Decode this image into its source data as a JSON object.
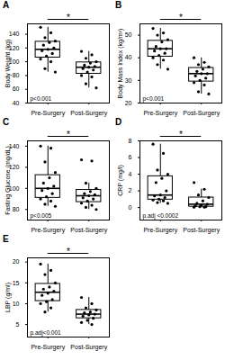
{
  "chart_data": [
    {
      "type": "box",
      "title": "A",
      "y_label": "Body Weight (kg)",
      "color": "#000000",
      "categories": [
        "Pre-Surgery",
        "Post-Surgery"
      ],
      "values": [
        [
          150,
          142,
          135,
          130,
          128,
          124,
          120,
          118,
          116,
          112,
          108,
          104,
          100,
          90,
          85
        ],
        [
          115,
          110,
          105,
          100,
          98,
          95,
          93,
          92,
          90,
          88,
          85,
          80,
          78,
          68,
          62
        ]
      ],
      "ylim": [
        40,
        155
      ],
      "yticks": [
        40,
        60,
        80,
        100,
        120,
        140
      ],
      "annotations": [
        "*",
        "p<0.001"
      ]
    },
    {
      "type": "box",
      "title": "B",
      "y_label": "Body Mass Index (kg/m²)",
      "color": "#000000",
      "categories": [
        "Pre-Surgery",
        "Post-Surgery"
      ],
      "values": [
        [
          53,
          51,
          50,
          48,
          47,
          45,
          44,
          44,
          43,
          42,
          41,
          40,
          39,
          37,
          35
        ],
        [
          40,
          38,
          37,
          36,
          35,
          34,
          33,
          33,
          32,
          31,
          30,
          29,
          28,
          25,
          24
        ]
      ],
      "ylim": [
        20,
        55
      ],
      "yticks": [
        20,
        30,
        40,
        50
      ],
      "annotations": [
        "*",
        "p<0.001"
      ]
    },
    {
      "type": "box",
      "title": "C",
      "y_label": "Fasting Glucose (mg/dL)",
      "color": "#000000",
      "categories": [
        "Pre-Surgery",
        "Post-Surgery"
      ],
      "values": [
        [
          140,
          138,
          125,
          115,
          110,
          105,
          102,
          100,
          98,
          95,
          92,
          90,
          88,
          85,
          83
        ],
        [
          127,
          126,
          105,
          100,
          97,
          95,
          94,
          93,
          91,
          90,
          88,
          86,
          84,
          82,
          80
        ]
      ],
      "ylim": [
        70,
        145
      ],
      "yticks": [
        80,
        100,
        120,
        140
      ],
      "annotations": [
        "*",
        "p<0.005"
      ]
    },
    {
      "type": "box",
      "title": "D",
      "y_label": "CRP (mg/l)",
      "color": "#000000",
      "categories": [
        "Pre-Surgery",
        "Post-Surgery"
      ],
      "values": [
        [
          7.6,
          6.5,
          4.5,
          4,
          3.5,
          3,
          2,
          1.5,
          1.4,
          1.2,
          1,
          0.9,
          0.8,
          0.6,
          0.5
        ],
        [
          3,
          2.2,
          1.5,
          1.2,
          0.8,
          0.5,
          0.4,
          0.3,
          0.2,
          0.1,
          0.1,
          0.05,
          0.05
        ]
      ],
      "ylim": [
        -1.5,
        8
      ],
      "yticks": [
        0,
        2,
        4,
        6,
        8
      ],
      "annotations": [
        "*",
        "p.adj <0.0002"
      ]
    },
    {
      "type": "box",
      "title": "E",
      "y_label": "LBP (g/ml)",
      "color": "#000000",
      "categories": [
        "Pre-Surgery",
        "Post-Surgery"
      ],
      "values": [
        [
          19.5,
          18,
          17,
          15,
          14,
          13.5,
          13,
          12.5,
          12,
          11,
          10.5,
          10,
          9,
          8
        ],
        [
          11.5,
          10,
          9,
          8.5,
          8,
          7.8,
          7.5,
          7.3,
          7,
          6.5,
          6,
          5.5,
          5
        ]
      ],
      "ylim": [
        2,
        21
      ],
      "yticks": [
        5,
        10,
        15,
        20
      ],
      "annotations": [
        "*",
        "p.adj<0.001"
      ]
    }
  ]
}
